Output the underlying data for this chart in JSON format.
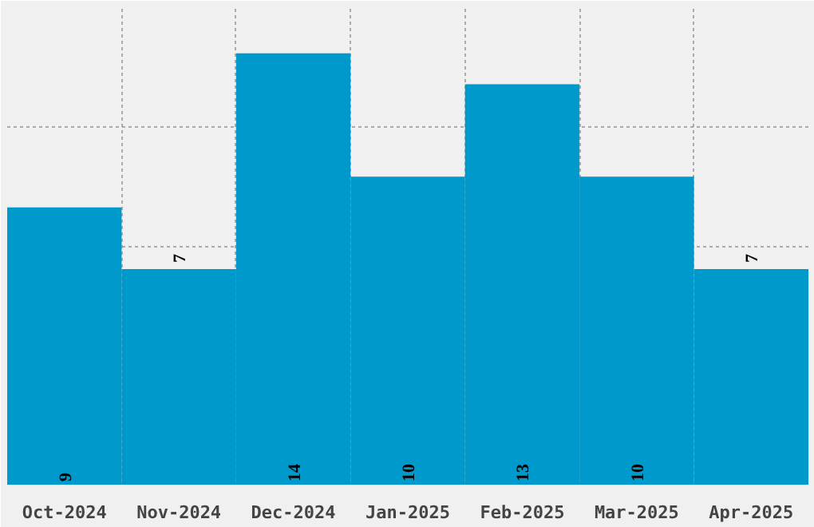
{
  "chart_data": {
    "type": "bar",
    "categories": [
      "Oct-2024",
      "Nov-2024",
      "Dec-2024",
      "Jan-2025",
      "Feb-2025",
      "Mar-2025",
      "Apr-2025"
    ],
    "values": [
      9,
      7,
      14,
      10,
      13,
      10,
      7
    ],
    "color": "#0099cc",
    "ylim": [
      0,
      15.5
    ],
    "yticks": [
      {
        "value": 3.875,
        "label": null
      },
      {
        "value": 7.75,
        "label": null
      },
      {
        "value": 11.625,
        "label": null
      }
    ],
    "grid": true,
    "tick_labels": "x",
    "data_labels": true
  }
}
